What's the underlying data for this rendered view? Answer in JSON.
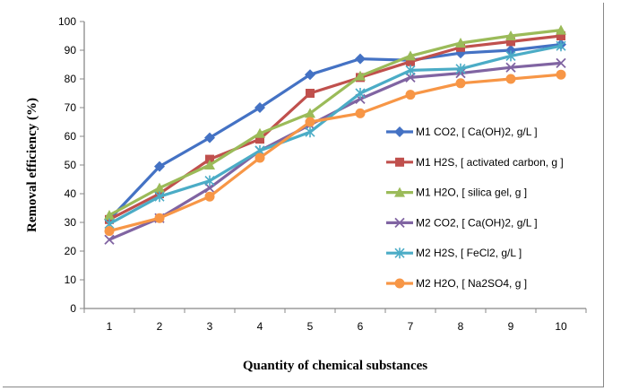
{
  "chart_data": {
    "type": "line",
    "title": "",
    "xlabel": "Quantity of chemical substances",
    "ylabel": "Removal efficiency (%)",
    "x": [
      1,
      2,
      3,
      4,
      5,
      6,
      7,
      8,
      9,
      10
    ],
    "ylim": [
      0,
      100
    ],
    "yticks": [
      0,
      10,
      20,
      30,
      40,
      50,
      60,
      70,
      80,
      90,
      100
    ],
    "grid": false,
    "legend_position": "right",
    "series": [
      {
        "name": "M1 CO2, [ Ca(OH)2, g/L ]",
        "color": "#4472C4",
        "marker": "diamond",
        "values": [
          31,
          49.5,
          59.5,
          70,
          81.5,
          87,
          86.5,
          89,
          90,
          92
        ]
      },
      {
        "name": "M1 H2S, [ activated carbon, g ]",
        "color": "#C0504D",
        "marker": "square",
        "values": [
          31,
          40,
          52,
          59,
          75,
          80.5,
          86,
          91,
          93,
          95
        ]
      },
      {
        "name": "M1 H2O, [ silica gel, g ]",
        "color": "#9BBB59",
        "marker": "triangle",
        "values": [
          32.5,
          42,
          50,
          61,
          68,
          81,
          88,
          92.5,
          95,
          97
        ]
      },
      {
        "name": "M2 CO2, [ Ca(OH)2, g/L ]",
        "color": "#8064A2",
        "marker": "x",
        "values": [
          24,
          31.5,
          42,
          55,
          64,
          73,
          80.5,
          82,
          84,
          85.5
        ]
      },
      {
        "name": "M2 H2S, [ FeCl2, g/L ]",
        "color": "#4BACC6",
        "marker": "star",
        "values": [
          29.5,
          39,
          44.5,
          55,
          61.5,
          75,
          83,
          83.5,
          88,
          91.5
        ]
      },
      {
        "name": "M2 H2O, [ Na2SO4, g ]",
        "color": "#F79646",
        "marker": "circle",
        "values": [
          27,
          31.5,
          39,
          52.5,
          65,
          68,
          74.5,
          78.5,
          80,
          81.5
        ]
      }
    ]
  }
}
